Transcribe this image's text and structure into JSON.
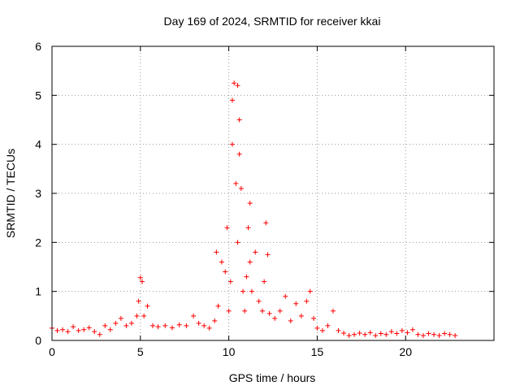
{
  "chart_data": {
    "type": "scatter",
    "title": "Day 169 of 2024, SRMTID for receiver kkai",
    "xlabel": "GPS time / hours",
    "ylabel": "SRMTID / TECUs",
    "xlim": [
      0,
      25
    ],
    "ylim": [
      0,
      6
    ],
    "xticks": [
      0,
      5,
      10,
      15,
      20
    ],
    "yticks": [
      0,
      1,
      2,
      3,
      4,
      5,
      6
    ],
    "grid": true,
    "marker": "+",
    "series": [
      {
        "name": "SRMTID",
        "color": "#ff0000",
        "points": [
          [
            0.0,
            0.25
          ],
          [
            0.3,
            0.2
          ],
          [
            0.6,
            0.22
          ],
          [
            0.9,
            0.18
          ],
          [
            1.2,
            0.28
          ],
          [
            1.5,
            0.2
          ],
          [
            1.8,
            0.22
          ],
          [
            2.1,
            0.26
          ],
          [
            2.4,
            0.18
          ],
          [
            2.7,
            0.12
          ],
          [
            3.0,
            0.3
          ],
          [
            3.3,
            0.22
          ],
          [
            3.6,
            0.35
          ],
          [
            3.9,
            0.45
          ],
          [
            4.2,
            0.3
          ],
          [
            4.5,
            0.35
          ],
          [
            4.8,
            0.5
          ],
          [
            4.9,
            0.8
          ],
          [
            5.0,
            1.28
          ],
          [
            5.1,
            1.2
          ],
          [
            5.2,
            0.5
          ],
          [
            5.4,
            0.7
          ],
          [
            5.7,
            0.3
          ],
          [
            6.0,
            0.28
          ],
          [
            6.4,
            0.3
          ],
          [
            6.8,
            0.26
          ],
          [
            7.2,
            0.32
          ],
          [
            7.6,
            0.3
          ],
          [
            8.0,
            0.5
          ],
          [
            8.3,
            0.35
          ],
          [
            8.6,
            0.3
          ],
          [
            8.9,
            0.25
          ],
          [
            9.2,
            0.4
          ],
          [
            9.3,
            1.8
          ],
          [
            9.4,
            0.7
          ],
          [
            9.6,
            1.6
          ],
          [
            9.8,
            1.4
          ],
          [
            9.9,
            2.3
          ],
          [
            10.0,
            0.6
          ],
          [
            10.1,
            1.2
          ],
          [
            10.2,
            4.0
          ],
          [
            10.2,
            4.9
          ],
          [
            10.3,
            5.25
          ],
          [
            10.4,
            3.2
          ],
          [
            10.5,
            2.0
          ],
          [
            10.5,
            5.2
          ],
          [
            10.6,
            4.5
          ],
          [
            10.6,
            3.8
          ],
          [
            10.7,
            3.1
          ],
          [
            10.8,
            1.0
          ],
          [
            10.9,
            0.6
          ],
          [
            11.0,
            1.3
          ],
          [
            11.1,
            2.3
          ],
          [
            11.2,
            2.8
          ],
          [
            11.2,
            1.6
          ],
          [
            11.3,
            1.0
          ],
          [
            11.5,
            1.8
          ],
          [
            11.7,
            0.8
          ],
          [
            11.9,
            0.6
          ],
          [
            12.0,
            1.2
          ],
          [
            12.1,
            2.4
          ],
          [
            12.2,
            1.75
          ],
          [
            12.3,
            0.55
          ],
          [
            12.6,
            0.45
          ],
          [
            12.9,
            0.6
          ],
          [
            13.2,
            0.9
          ],
          [
            13.5,
            0.4
          ],
          [
            13.8,
            0.75
          ],
          [
            14.1,
            0.5
          ],
          [
            14.4,
            0.8
          ],
          [
            14.6,
            1.0
          ],
          [
            14.8,
            0.45
          ],
          [
            15.0,
            0.25
          ],
          [
            15.3,
            0.2
          ],
          [
            15.6,
            0.3
          ],
          [
            15.9,
            0.6
          ],
          [
            16.2,
            0.2
          ],
          [
            16.5,
            0.15
          ],
          [
            16.8,
            0.1
          ],
          [
            17.1,
            0.12
          ],
          [
            17.4,
            0.15
          ],
          [
            17.7,
            0.12
          ],
          [
            18.0,
            0.16
          ],
          [
            18.3,
            0.1
          ],
          [
            18.6,
            0.14
          ],
          [
            18.9,
            0.12
          ],
          [
            19.2,
            0.18
          ],
          [
            19.5,
            0.14
          ],
          [
            19.8,
            0.2
          ],
          [
            20.1,
            0.16
          ],
          [
            20.4,
            0.22
          ],
          [
            20.7,
            0.12
          ],
          [
            21.0,
            0.1
          ],
          [
            21.3,
            0.14
          ],
          [
            21.6,
            0.12
          ],
          [
            21.9,
            0.1
          ],
          [
            22.2,
            0.14
          ],
          [
            22.5,
            0.12
          ],
          [
            22.8,
            0.1
          ]
        ]
      }
    ]
  }
}
